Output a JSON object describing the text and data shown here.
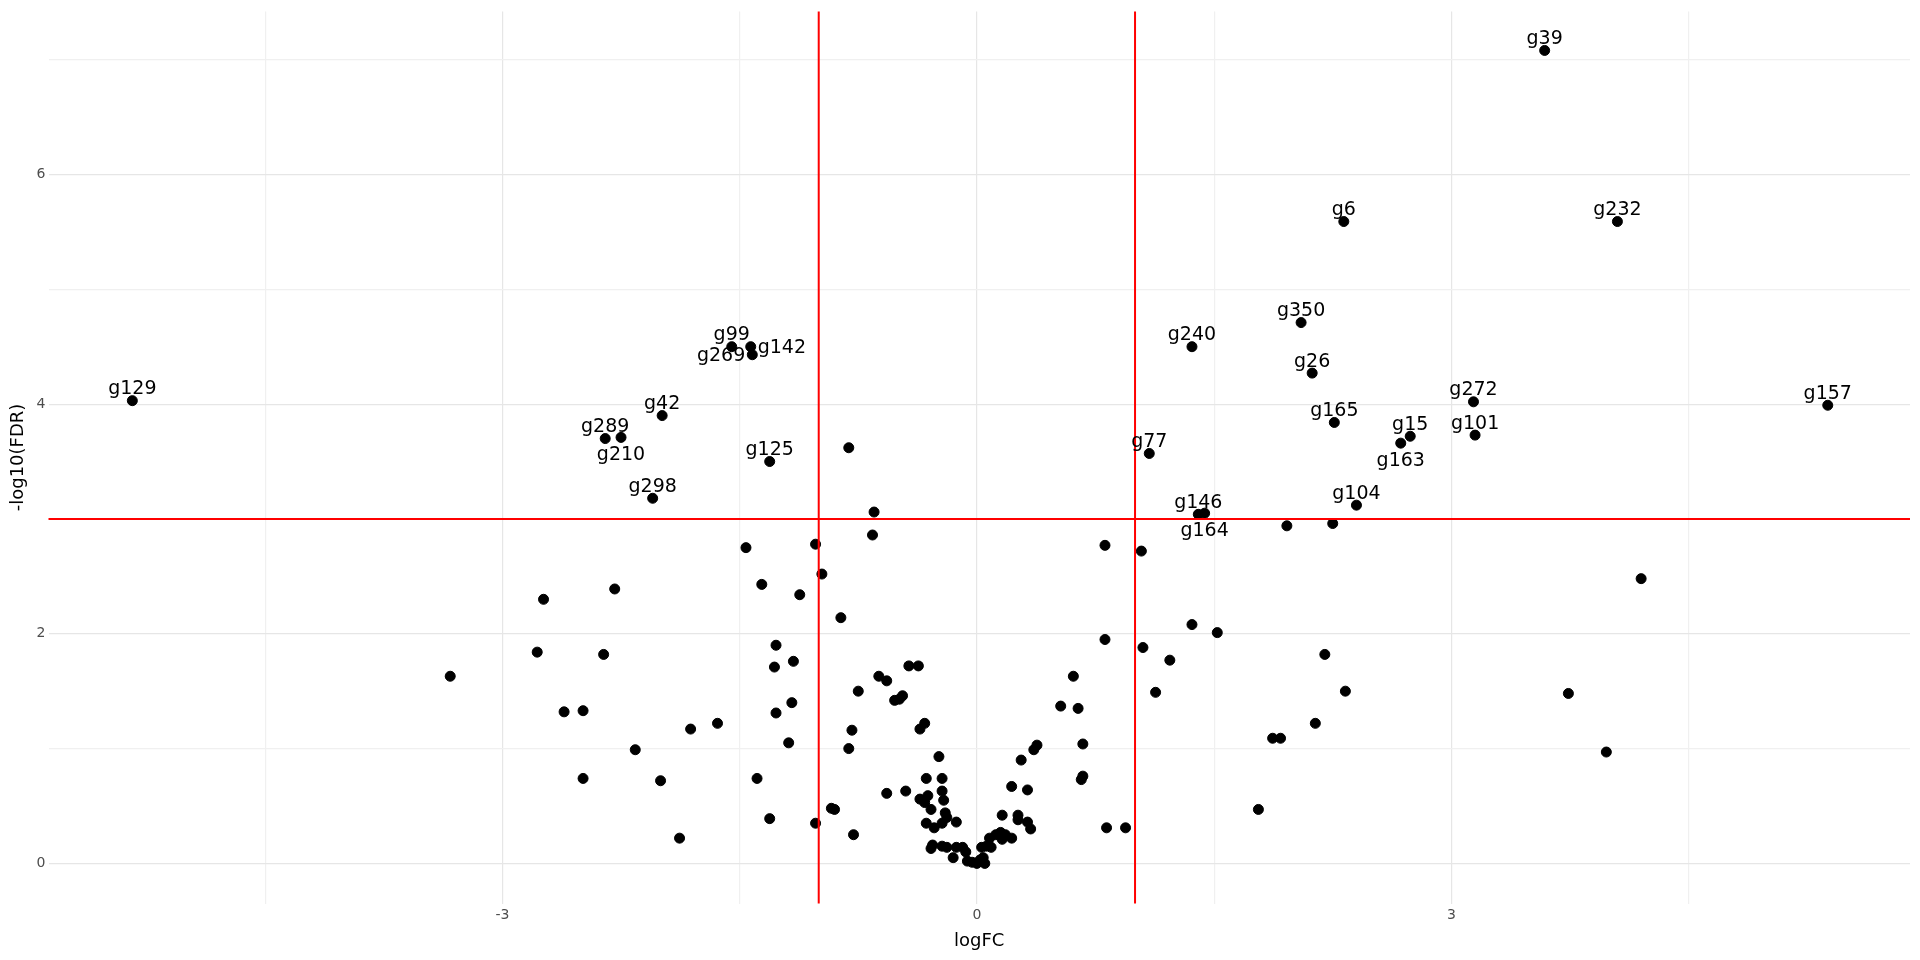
{
  "chart_data": {
    "type": "scatter",
    "xlabel": "logFC",
    "ylabel": "-log10(FDR)",
    "xlim": [
      -5.87,
      5.9
    ],
    "ylim": [
      -0.35,
      7.42
    ],
    "xticks": [
      {
        "value": -4.5,
        "label": null
      },
      -3,
      {
        "value": -1.5,
        "label": null
      },
      0,
      {
        "value": 1.5,
        "label": null
      },
      3,
      {
        "value": 4.5,
        "label": null
      }
    ],
    "yticks": [
      0,
      {
        "value": 1,
        "label": null
      },
      2,
      {
        "value": 3,
        "label": null
      },
      4,
      {
        "value": 5,
        "label": null
      },
      6,
      {
        "value": 7,
        "label": null
      }
    ],
    "grid": true,
    "legend": false,
    "marker": "circle",
    "series": [
      {
        "color": "#000000",
        "x": [
          3.59,
          4.05,
          2.32,
          2.05,
          1.36,
          2.12,
          3.14,
          5.38,
          2.26,
          3.15,
          2.74,
          2.68,
          1.09,
          2.4,
          1.4,
          1.44,
          -5.34,
          -1.99,
          -2.35,
          -2.25,
          -2.05,
          -1.55,
          -1.43,
          -1.42,
          -1.31,
          -0.81,
          -0.65,
          -1.46,
          -1.02,
          -0.66,
          -0.98,
          -1.36,
          -1.12,
          -2.29,
          -2.74,
          -0.86,
          -2.78,
          -2.36,
          -1.27,
          -1.16,
          -1.28,
          -3.33,
          -0.62,
          -0.57,
          -0.43,
          -0.37,
          -0.75,
          -0.47,
          -0.49,
          -0.52,
          -1.17,
          -2.61,
          -2.49,
          -1.27,
          -1.64,
          -1.81,
          -0.33,
          -0.36,
          -0.79,
          -1.19,
          -2.16,
          -0.81,
          -0.24,
          -2.49,
          -2.0,
          -1.39,
          -0.32,
          -0.22,
          -0.57,
          -0.45,
          -0.36,
          -0.33,
          -0.21,
          -0.22,
          -0.31,
          -0.92,
          -0.9,
          -0.29,
          -1.31,
          -1.02,
          -0.2,
          -0.19,
          -0.22,
          -0.13,
          -0.32,
          -0.27,
          -0.78,
          -1.88,
          -0.28,
          -0.29,
          -0.22,
          -0.19,
          -0.13,
          -0.09,
          -0.15,
          -0.07,
          -0.06,
          -0.03,
          0,
          0.02,
          0.04,
          0.05,
          0.03,
          0.06,
          0.09,
          0.08,
          0.12,
          0.15,
          0.16,
          0.16,
          0.18,
          0.22,
          0.26,
          0.26,
          0.22,
          0.28,
          0.32,
          0.32,
          0.36,
          0.38,
          0.34,
          0.53,
          0.61,
          0.64,
          0.67,
          0.67,
          0.66,
          0.81,
          0.81,
          0.82,
          0.94,
          1.04,
          1.05,
          1.13,
          1.22,
          1.36,
          1.52,
          1.96,
          2.25,
          2.2,
          2.33,
          2.14,
          1.87,
          1.92,
          1.78,
          4.2,
          3.74,
          3.98
        ],
        "values": [
          7.08,
          5.59,
          5.59,
          4.71,
          4.5,
          4.27,
          4.02,
          3.99,
          3.84,
          3.73,
          3.72,
          3.66,
          3.57,
          3.12,
          3.04,
          3.05,
          4.03,
          3.9,
          3.7,
          3.71,
          3.18,
          4.5,
          4.5,
          4.43,
          3.5,
          3.62,
          3.06,
          2.75,
          2.78,
          2.86,
          2.52,
          2.43,
          2.34,
          2.39,
          2.3,
          2.14,
          1.84,
          1.82,
          1.9,
          1.76,
          1.71,
          1.63,
          1.63,
          1.59,
          1.72,
          1.72,
          1.5,
          1.46,
          1.43,
          1.42,
          1.4,
          1.32,
          1.33,
          1.31,
          1.22,
          1.17,
          1.22,
          1.17,
          1.16,
          1.05,
          0.99,
          1.0,
          0.93,
          0.74,
          0.72,
          0.74,
          0.74,
          0.74,
          0.61,
          0.63,
          0.56,
          0.53,
          0.55,
          0.63,
          0.59,
          0.48,
          0.47,
          0.47,
          0.39,
          0.35,
          0.44,
          0.4,
          0.35,
          0.36,
          0.35,
          0.31,
          0.25,
          0.22,
          0.16,
          0.13,
          0.15,
          0.14,
          0.14,
          0.14,
          0.05,
          0.1,
          0.02,
          0.01,
          0,
          0.03,
          0.05,
          0,
          0.14,
          0.15,
          0.14,
          0.22,
          0.25,
          0.27,
          0.42,
          0.21,
          0.25,
          0.22,
          0.38,
          0.42,
          0.67,
          0.9,
          0.36,
          0.64,
          0.99,
          1.03,
          0.3,
          1.37,
          1.63,
          1.35,
          1.04,
          0.76,
          0.73,
          1.95,
          2.77,
          0.31,
          0.31,
          2.72,
          1.88,
          1.49,
          1.77,
          2.08,
          2.01,
          2.94,
          2.96,
          1.82,
          1.5,
          1.22,
          1.09,
          1.09,
          0.47,
          2.48,
          1.48,
          0.97
        ]
      }
    ],
    "ref_lines": [
      {
        "axis": "x",
        "value": -1,
        "color": "#ff0000"
      },
      {
        "axis": "x",
        "value": 1,
        "color": "#ff0000"
      },
      {
        "axis": "y",
        "value": 3,
        "color": "#ff0000"
      }
    ],
    "annotations": [
      {
        "text": "g39",
        "x": 3.59,
        "y": 7.08
      },
      {
        "text": "g232",
        "x": 4.05,
        "y": 5.59
      },
      {
        "text": "g6",
        "x": 2.32,
        "y": 5.59
      },
      {
        "text": "g350",
        "x": 2.05,
        "y": 4.71
      },
      {
        "text": "g240",
        "x": 1.36,
        "y": 4.5
      },
      {
        "text": "g26",
        "x": 2.12,
        "y": 4.27
      },
      {
        "text": "g272",
        "x": 3.14,
        "y": 4.02
      },
      {
        "text": "g157",
        "x": 5.38,
        "y": 3.99
      },
      {
        "text": "g165",
        "x": 2.26,
        "y": 3.84
      },
      {
        "text": "g101",
        "x": 3.15,
        "y": 3.73
      },
      {
        "text": "g15",
        "x": 2.74,
        "y": 3.72
      },
      {
        "text": "g163",
        "x": 2.68,
        "y": 3.66
      },
      {
        "text": "g77",
        "x": 1.09,
        "y": 3.57
      },
      {
        "text": "g104",
        "x": 2.4,
        "y": 3.12
      },
      {
        "text": "g146",
        "x": 1.4,
        "y": 3.04
      },
      {
        "text": "g164",
        "x": 1.44,
        "y": 3.05
      },
      {
        "text": "g129",
        "x": -5.34,
        "y": 4.03
      },
      {
        "text": "g42",
        "x": -1.99,
        "y": 3.9
      },
      {
        "text": "g289",
        "x": -2.35,
        "y": 3.7
      },
      {
        "text": "g210",
        "x": -2.25,
        "y": 3.71
      },
      {
        "text": "g298",
        "x": -2.05,
        "y": 3.18
      },
      {
        "text": "g99",
        "x": -1.55,
        "y": 4.5
      },
      {
        "text": "g142",
        "x": -1.43,
        "y": 4.5
      },
      {
        "text": "g269",
        "x": -1.42,
        "y": 4.43
      },
      {
        "text": "g125",
        "x": -1.31,
        "y": 3.5
      }
    ]
  }
}
